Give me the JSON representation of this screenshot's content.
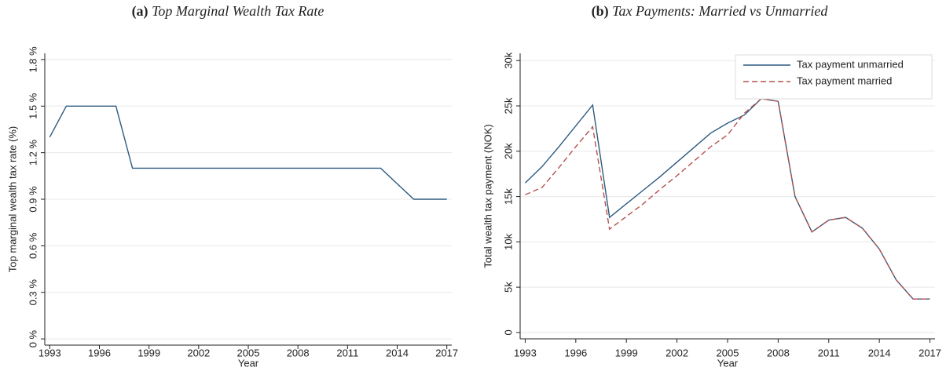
{
  "chart_data": [
    {
      "type": "line",
      "panel_label": "(a)",
      "title": "Top Marginal Wealth Tax Rate",
      "x_label": "Year",
      "y_label": "Top marginal wealth tax rate (%)",
      "x": [
        1993,
        1994,
        1995,
        1996,
        1997,
        1998,
        1999,
        2000,
        2001,
        2002,
        2003,
        2004,
        2005,
        2006,
        2007,
        2008,
        2009,
        2010,
        2011,
        2012,
        2013,
        2014,
        2015,
        2016,
        2017
      ],
      "series": [
        {
          "name": null,
          "color": "#2e5a80",
          "line_style": "solid",
          "values": [
            1.3,
            1.5,
            1.5,
            1.5,
            1.5,
            1.1,
            1.1,
            1.1,
            1.1,
            1.1,
            1.1,
            1.1,
            1.1,
            1.1,
            1.1,
            1.1,
            1.1,
            1.1,
            1.1,
            1.1,
            1.1,
            1.0,
            0.9,
            0.9,
            0.9
          ]
        }
      ],
      "xlim": [
        1992.7,
        2017.3
      ],
      "xticks": [
        1993,
        1996,
        1999,
        2002,
        2005,
        2008,
        2011,
        2014,
        2017
      ],
      "ylim": [
        -0.04,
        1.84
      ],
      "yticks": [
        {
          "value": 0,
          "label": "0 %"
        },
        {
          "value": 0.3,
          "label": "0.3 %"
        },
        {
          "value": 0.6,
          "label": "0.6 %"
        },
        {
          "value": 0.9,
          "label": "0.9 %"
        },
        {
          "value": 1.2,
          "label": "1.2 %"
        },
        {
          "value": 1.5,
          "label": "1.5 %"
        },
        {
          "value": 1.8,
          "label": "1.8 %"
        }
      ],
      "grid": true,
      "legend": false
    },
    {
      "type": "line",
      "panel_label": "(b)",
      "title": "Tax Payments: Married vs Unmarried",
      "x_label": "Year",
      "y_label": "Total wealth tax payment (NOK)",
      "x": [
        1993,
        1994,
        1995,
        1996,
        1997,
        1998,
        1999,
        2000,
        2001,
        2002,
        2003,
        2004,
        2005,
        2006,
        2007,
        2008,
        2009,
        2010,
        2011,
        2012,
        2013,
        2014,
        2015,
        2016,
        2017
      ],
      "series": [
        {
          "name": "Tax payment unmarried",
          "color": "#2e5a80",
          "line_style": "solid",
          "values": [
            16500,
            18300,
            20500,
            22800,
            25100,
            12700,
            14200,
            15700,
            17200,
            18800,
            20400,
            22000,
            23100,
            24000,
            25800,
            25500,
            15000,
            11100,
            12400,
            12700,
            11500,
            9200,
            5800,
            3700,
            3700
          ]
        },
        {
          "name": "Tax payment married",
          "color": "#b5524f",
          "line_style": "dashed",
          "values": [
            15200,
            16000,
            18200,
            20500,
            22700,
            11400,
            12800,
            14200,
            15800,
            17300,
            18900,
            20500,
            21800,
            24200,
            25800,
            25500,
            15000,
            11100,
            12400,
            12700,
            11500,
            9200,
            5800,
            3700,
            3700
          ]
        }
      ],
      "xlim": [
        1992.7,
        2017.3
      ],
      "xticks": [
        1993,
        1996,
        1999,
        2002,
        2005,
        2008,
        2011,
        2014,
        2017
      ],
      "ylim": [
        -700,
        30800
      ],
      "yticks": [
        0,
        {
          "value": 5000,
          "label": "5k"
        },
        {
          "value": 10000,
          "label": "10k"
        },
        {
          "value": 15000,
          "label": "15k"
        },
        {
          "value": 20000,
          "label": "20k"
        },
        {
          "value": 25000,
          "label": "25k"
        },
        {
          "value": 30000,
          "label": "30k"
        }
      ],
      "grid": true,
      "legend": "top-right"
    }
  ]
}
